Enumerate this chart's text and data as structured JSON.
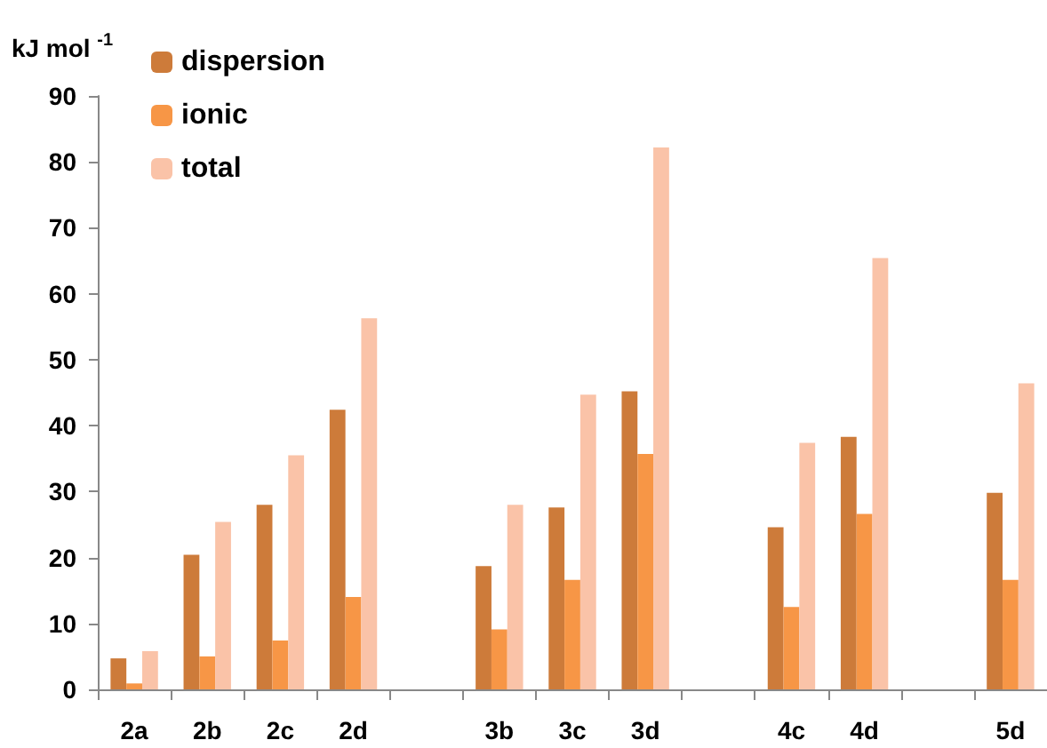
{
  "chart_data": {
    "type": "bar",
    "ylabel": "kJ mol $^{-1}$",
    "categories": [
      "2a",
      "2b",
      "2c",
      "2d",
      null,
      "3b",
      "3c",
      "3d",
      null,
      "4c",
      "4d",
      null,
      "5d"
    ],
    "series": [
      {
        "name": "dispersion",
        "color": "#cd7b3a",
        "values": [
          4.7,
          20.4,
          28,
          42.4,
          null,
          18.7,
          27.6,
          45.2,
          null,
          24.6,
          38.3,
          null,
          29.8
        ]
      },
      {
        "name": "ionic",
        "color": "#f79646",
        "values": [
          0.9,
          5,
          7.4,
          14,
          null,
          9.1,
          16.6,
          35.7,
          null,
          12.5,
          26.6,
          null,
          16.6
        ]
      },
      {
        "name": "total",
        "color": "#fac3a8",
        "values": [
          5.8,
          25.4,
          35.5,
          56.3,
          null,
          28,
          44.7,
          82.2,
          null,
          37.4,
          65.4,
          null,
          46.4
        ]
      }
    ],
    "ylim": [
      0,
      90
    ],
    "yticks": [
      0,
      10,
      20,
      30,
      40,
      50,
      60,
      70,
      80,
      90
    ],
    "grid": false,
    "legend": "top left"
  }
}
